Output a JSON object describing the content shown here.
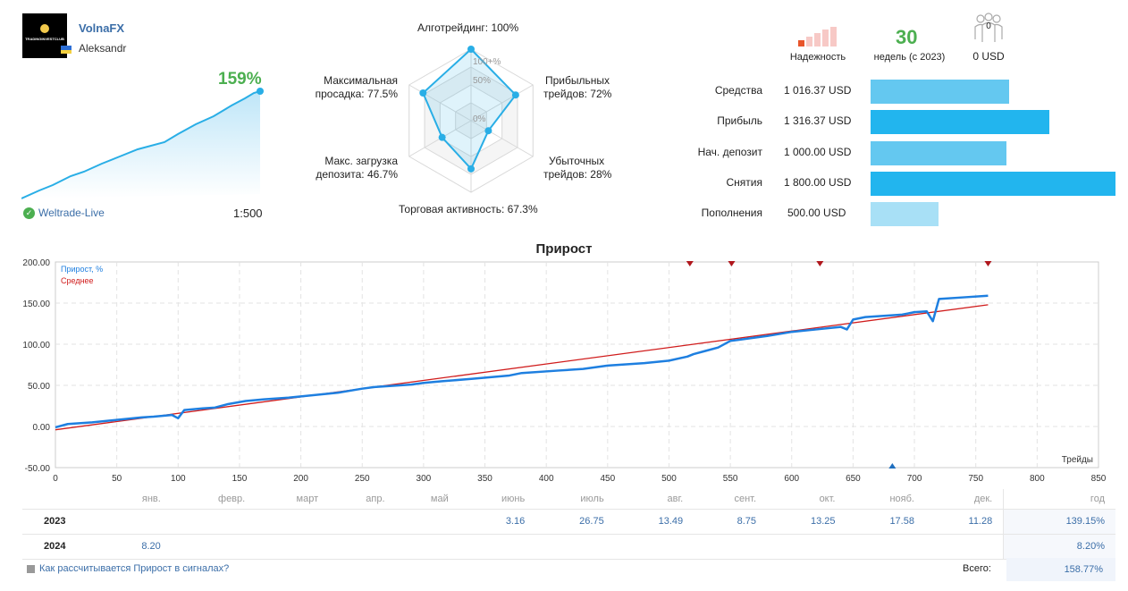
{
  "profile": {
    "avatar_text": "TRADINGINVESTCLUB",
    "name": "VolnaFX",
    "user": "Aleksandr",
    "growth": "159%",
    "broker": "Weltrade-Live",
    "leverage": "1:500"
  },
  "radar": {
    "labels": {
      "algo": "Алготрейдинг: 100%",
      "profit_trades": [
        "Прибыльных",
        "трейдов: 72%"
      ],
      "loss_trades": [
        "Убыточных",
        "трейдов: 28%"
      ],
      "activity": "Торговая активность: 67.3%",
      "load": [
        "Макс. загрузка",
        "депозита: 46.7%"
      ],
      "drawdown": [
        "Максимальная",
        "просадка: 77.5%"
      ]
    },
    "scale": [
      "100+%",
      "50%",
      "0%"
    ],
    "values": [
      100,
      72,
      28,
      67.3,
      46.7,
      77.5
    ],
    "color": "#29aee6"
  },
  "stats": {
    "reliability_label": "Надежность",
    "weeks_value": "30",
    "weeks_label": "недель (с 2023)",
    "subscribers_count": "0",
    "subscribers_value": "0 USD"
  },
  "finance": [
    {
      "label": "Средства",
      "value": "1 016.37 USD",
      "amount": 1016.37,
      "color": "#64c8f0"
    },
    {
      "label": "Прибыль",
      "value": "1 316.37 USD",
      "amount": 1316.37,
      "color": "#22b5ee"
    },
    {
      "label": "Нач. депозит",
      "value": "1 000.00 USD",
      "amount": 1000.0,
      "color": "#64c8f0"
    },
    {
      "label": "Снятия",
      "value": "1 800.00 USD",
      "amount": 1800.0,
      "color": "#22b5ee"
    },
    {
      "label": "Пополнения",
      "value": "500.00 USD",
      "amount": 500.0,
      "color": "#a8e0f6"
    }
  ],
  "chart_data": {
    "type": "line",
    "title": "Прирост",
    "xlabel": "Трейды",
    "xlim": [
      0,
      850
    ],
    "ylim": [
      -50,
      200
    ],
    "xticks": [
      0,
      50,
      100,
      150,
      200,
      250,
      300,
      350,
      400,
      450,
      500,
      550,
      600,
      650,
      700,
      750,
      800,
      850
    ],
    "yticks": [
      "200.00",
      "150.00",
      "100.00",
      "50.00",
      "0.00",
      "-50.00"
    ],
    "grid": true,
    "legend_position": "top-left",
    "series": [
      {
        "name": "Прирост, %",
        "color": "#1e7fe0",
        "x": [
          0,
          10,
          30,
          50,
          70,
          80,
          95,
          100,
          105,
          120,
          130,
          140,
          155,
          170,
          190,
          210,
          230,
          250,
          260,
          290,
          300,
          315,
          340,
          370,
          380,
          410,
          430,
          450,
          480,
          500,
          515,
          520,
          530,
          540,
          550,
          580,
          600,
          620,
          640,
          645,
          650,
          660,
          690,
          700,
          710,
          715,
          720,
          740,
          760
        ],
        "y": [
          -1,
          3,
          5,
          8,
          11,
          12,
          14,
          10,
          20,
          22,
          23,
          27,
          31,
          33,
          35,
          38,
          41,
          46,
          48,
          51,
          53,
          55,
          58,
          62,
          65,
          68,
          70,
          74,
          77,
          80,
          85,
          88,
          92,
          96,
          104,
          110,
          115,
          118,
          121,
          118,
          130,
          133,
          136,
          139,
          140,
          128,
          155,
          157,
          159
        ]
      },
      {
        "name": "Среднее",
        "color": "#d01c1c",
        "x": [
          0,
          760
        ],
        "y": [
          -4,
          148
        ]
      }
    ],
    "markers_top": [
      517,
      551,
      623,
      760
    ],
    "markers_bottom": [
      682
    ]
  },
  "monthly": {
    "header": [
      "янв.",
      "февр.",
      "март",
      "апр.",
      "май",
      "июнь",
      "июль",
      "авг.",
      "сент.",
      "окт.",
      "нояб.",
      "дек.",
      "год"
    ],
    "rows": [
      {
        "year": "2023",
        "cells": [
          "",
          "",
          "",
          "",
          "",
          "3.16",
          "26.75",
          "13.49",
          "8.75",
          "13.25",
          "17.58",
          "11.28"
        ],
        "total": "139.15%"
      },
      {
        "year": "2024",
        "cells": [
          "8.20",
          "",
          "",
          "",
          "",
          "",
          "",
          "",
          "",
          "",
          "",
          ""
        ],
        "total": "8.20%"
      }
    ],
    "link": "Как рассчитывается Прирост в сигналах?",
    "total_label": "Всего:",
    "total_value": "158.77%"
  }
}
